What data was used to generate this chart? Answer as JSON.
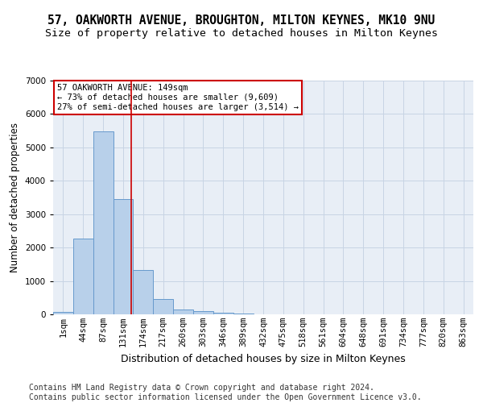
{
  "title": "57, OAKWORTH AVENUE, BROUGHTON, MILTON KEYNES, MK10 9NU",
  "subtitle": "Size of property relative to detached houses in Milton Keynes",
  "xlabel": "Distribution of detached houses by size in Milton Keynes",
  "ylabel": "Number of detached properties",
  "footer_line1": "Contains HM Land Registry data © Crown copyright and database right 2024.",
  "footer_line2": "Contains public sector information licensed under the Open Government Licence v3.0.",
  "bar_labels": [
    "1sqm",
    "44sqm",
    "87sqm",
    "131sqm",
    "174sqm",
    "217sqm",
    "260sqm",
    "303sqm",
    "346sqm",
    "389sqm",
    "432sqm",
    "475sqm",
    "518sqm",
    "561sqm",
    "604sqm",
    "648sqm",
    "691sqm",
    "734sqm",
    "777sqm",
    "820sqm",
    "863sqm"
  ],
  "bar_values": [
    75,
    2280,
    5480,
    3450,
    1320,
    470,
    145,
    85,
    55,
    30,
    10,
    5,
    2,
    1,
    0,
    0,
    0,
    0,
    0,
    0,
    0
  ],
  "bar_color": "#b8d0ea",
  "bar_edge_color": "#6699cc",
  "grid_color": "#c8d4e4",
  "background_color": "#e8eef6",
  "red_line_x": 3.42,
  "annotation_text_line1": "57 OAKWORTH AVENUE: 149sqm",
  "annotation_text_line2": "← 73% of detached houses are smaller (9,609)",
  "annotation_text_line3": "27% of semi-detached houses are larger (3,514) →",
  "annotation_box_color": "#ffffff",
  "annotation_box_edge": "#cc0000",
  "ylim": [
    0,
    7000
  ],
  "yticks": [
    0,
    1000,
    2000,
    3000,
    4000,
    5000,
    6000,
    7000
  ],
  "title_fontsize": 10.5,
  "subtitle_fontsize": 9.5,
  "xlabel_fontsize": 9,
  "ylabel_fontsize": 8.5,
  "tick_fontsize": 7.5,
  "annotation_fontsize": 7.5,
  "footer_fontsize": 7
}
